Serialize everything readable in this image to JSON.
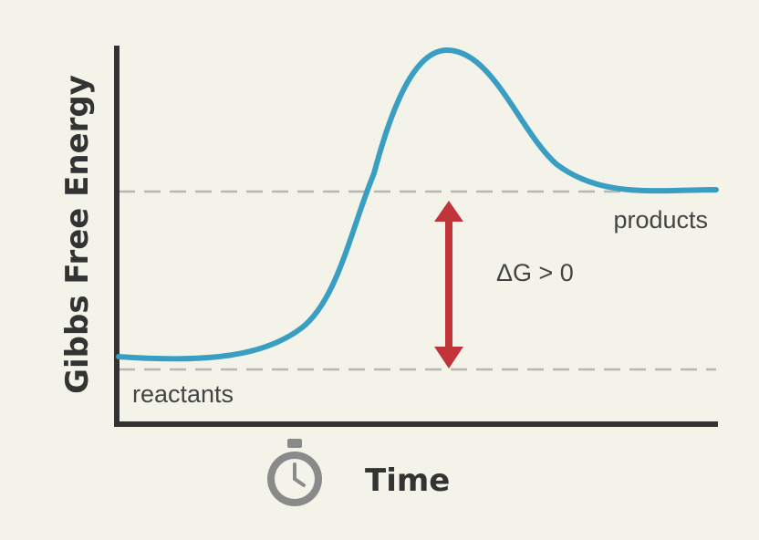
{
  "diagram": {
    "y_axis_label": "Gibbs Free Energy",
    "x_axis_label": "Time",
    "reactants_label": "reactants",
    "products_label": "products",
    "delta_label": "ΔG > 0"
  },
  "icons": {
    "time": "stopwatch-icon"
  },
  "colors": {
    "curve": "#3a9ec3",
    "arrow": "#c0343a",
    "axis": "#333333",
    "dashed": "#b8b8b0",
    "background": "#f3f3ea"
  }
}
